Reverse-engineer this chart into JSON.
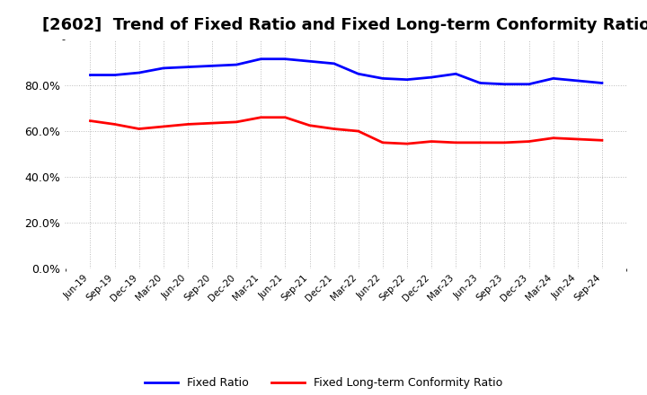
{
  "title": "[2602]  Trend of Fixed Ratio and Fixed Long-term Conformity Ratio",
  "x_labels": [
    "Jun-19",
    "Sep-19",
    "Dec-19",
    "Mar-20",
    "Jun-20",
    "Sep-20",
    "Dec-20",
    "Mar-21",
    "Jun-21",
    "Sep-21",
    "Dec-21",
    "Mar-22",
    "Jun-22",
    "Sep-22",
    "Dec-22",
    "Mar-23",
    "Jun-23",
    "Sep-23",
    "Dec-23",
    "Mar-24",
    "Jun-24",
    "Sep-24"
  ],
  "fixed_ratio": [
    84.5,
    84.5,
    85.5,
    87.5,
    88.0,
    88.5,
    89.0,
    91.5,
    91.5,
    90.5,
    89.5,
    85.0,
    83.0,
    82.5,
    83.5,
    85.0,
    81.0,
    80.5,
    80.5,
    83.0,
    82.0,
    81.0
  ],
  "fixed_lt_ratio": [
    64.5,
    63.0,
    61.0,
    62.0,
    63.0,
    63.5,
    64.0,
    66.0,
    66.0,
    62.5,
    61.0,
    60.0,
    55.0,
    54.5,
    55.5,
    55.0,
    55.0,
    55.0,
    55.5,
    57.0,
    56.5,
    56.0
  ],
  "fixed_ratio_color": "#0000FF",
  "fixed_lt_ratio_color": "#FF0000",
  "ylim": [
    0,
    100
  ],
  "yticks": [
    0,
    20,
    40,
    60,
    80
  ],
  "background_color": "#FFFFFF",
  "plot_bg_color": "#FFFFFF",
  "grid_color": "#AAAAAA",
  "title_fontsize": 13,
  "legend_labels": [
    "Fixed Ratio",
    "Fixed Long-term Conformity Ratio"
  ]
}
